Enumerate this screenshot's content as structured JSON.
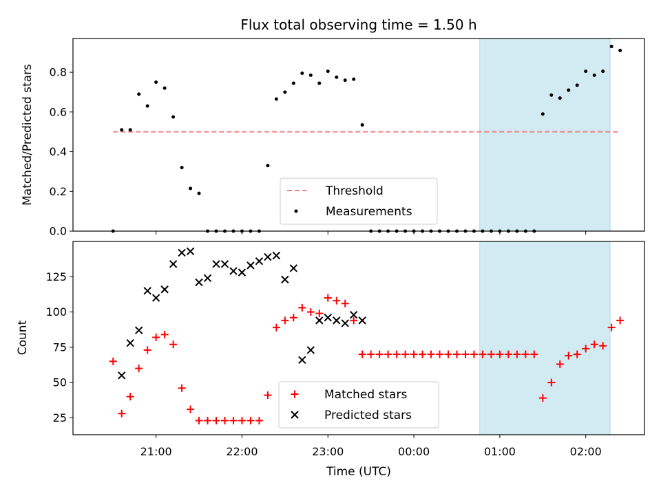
{
  "chart_data": {
    "title": "Flux total observing time = 1.50 h",
    "xlabel": "Time (UTC)",
    "x_tick_labels": [
      "21:00",
      "22:00",
      "23:00",
      "00:00",
      "01:00",
      "02:00"
    ],
    "highlight_color": "#add8e6",
    "panels": [
      {
        "type": "scatter",
        "ylabel": "Matched/Predicted stars",
        "ylim": [
          0,
          0.97
        ],
        "y_tick_labels": [
          "0.0",
          "0.2",
          "0.4",
          "0.6",
          "0.8"
        ],
        "threshold": {
          "name": "Threshold",
          "value": 0.5,
          "x_start": "20:30",
          "x_end": "02:23",
          "color": "#f08080"
        },
        "series": [
          {
            "name": "Measurements",
            "color": "#000000",
            "marker": "dot",
            "x": [
              "20:30",
              "20:36",
              "20:42",
              "20:48",
              "20:54",
              "21:00",
              "21:06",
              "21:12",
              "21:18",
              "21:24",
              "21:30",
              "21:36",
              "21:42",
              "21:48",
              "21:54",
              "22:00",
              "22:06",
              "22:12",
              "22:18",
              "22:24",
              "22:30",
              "22:36",
              "22:42",
              "22:48",
              "22:54",
              "23:00",
              "23:06",
              "23:12",
              "23:18",
              "23:24",
              "23:30",
              "23:36",
              "23:42",
              "23:48",
              "23:54",
              "00:00",
              "00:06",
              "00:12",
              "00:18",
              "00:24",
              "00:30",
              "00:36",
              "00:42",
              "00:48",
              "00:54",
              "01:00",
              "01:06",
              "01:12",
              "01:18",
              "01:24",
              "01:30",
              "01:36",
              "01:42",
              "01:48",
              "01:54",
              "02:00",
              "02:06",
              "02:12",
              "02:18",
              "02:24"
            ],
            "y": [
              0.0,
              0.51,
              0.51,
              0.69,
              0.63,
              0.75,
              0.72,
              0.575,
              0.32,
              0.215,
              0.19,
              0.0,
              0.0,
              0.0,
              0.0,
              0.0,
              0.0,
              0.0,
              0.33,
              0.665,
              0.7,
              0.745,
              0.795,
              0.785,
              0.745,
              0.805,
              0.775,
              0.76,
              0.765,
              0.535,
              0.0,
              0.0,
              0.0,
              0.0,
              0.0,
              0.0,
              0.0,
              0.0,
              0.0,
              0.0,
              0.0,
              0.0,
              0.0,
              0.0,
              0.0,
              0.0,
              0.0,
              0.0,
              0.0,
              0.0,
              0.59,
              0.685,
              0.67,
              0.71,
              0.735,
              0.805,
              0.785,
              0.805,
              0.93,
              0.91
            ]
          }
        ],
        "legend": [
          "Threshold",
          "Measurements"
        ],
        "legend_position": "lower center"
      },
      {
        "type": "scatter",
        "ylabel": "Count",
        "ylim": [
          13,
          150
        ],
        "y_tick_labels": [
          "25",
          "50",
          "75",
          "100",
          "125"
        ],
        "series": [
          {
            "name": "Matched stars",
            "color": "#ff0000",
            "marker": "plus",
            "x": [
              "20:30",
              "20:36",
              "20:42",
              "20:48",
              "20:54",
              "21:00",
              "21:06",
              "21:12",
              "21:18",
              "21:24",
              "21:30",
              "21:36",
              "21:42",
              "21:48",
              "21:54",
              "22:00",
              "22:06",
              "22:12",
              "22:18",
              "22:24",
              "22:30",
              "22:36",
              "22:42",
              "22:48",
              "22:54",
              "23:00",
              "23:06",
              "23:12",
              "23:18",
              "23:24",
              "23:30",
              "23:36",
              "23:42",
              "23:48",
              "23:54",
              "00:00",
              "00:06",
              "00:12",
              "00:18",
              "00:24",
              "00:30",
              "00:36",
              "00:42",
              "00:48",
              "00:54",
              "01:00",
              "01:06",
              "01:12",
              "01:18",
              "01:24",
              "01:30",
              "01:36",
              "01:42",
              "01:48",
              "01:54",
              "02:00",
              "02:06",
              "02:12",
              "02:18",
              "02:24"
            ],
            "y": [
              65,
              28,
              40,
              60,
              73,
              82,
              84,
              77,
              46,
              31,
              23,
              23,
              23,
              23,
              23,
              23,
              23,
              23,
              41,
              89,
              94,
              96,
              103,
              100,
              99,
              110,
              108,
              106,
              94,
              70,
              70,
              70,
              70,
              70,
              70,
              70,
              70,
              70,
              70,
              70,
              70,
              70,
              70,
              70,
              70,
              70,
              70,
              70,
              70,
              70,
              39,
              50,
              63,
              69,
              70,
              74,
              77,
              76,
              89,
              94
            ]
          },
          {
            "name": "Predicted stars",
            "color": "#000000",
            "marker": "cross",
            "x": [
              "20:36",
              "20:42",
              "20:48",
              "20:54",
              "21:00",
              "21:06",
              "21:12",
              "21:18",
              "21:24",
              "21:30",
              "21:36",
              "21:42",
              "21:48",
              "21:54",
              "22:00",
              "22:06",
              "22:12",
              "22:18",
              "22:24",
              "22:30",
              "22:36",
              "22:42",
              "22:48",
              "22:54",
              "23:00",
              "23:06",
              "23:12",
              "23:18",
              "23:24"
            ],
            "y": [
              55,
              78,
              87,
              115,
              110,
              116,
              134,
              142,
              143,
              121,
              124,
              134,
              134,
              129,
              128,
              133,
              136,
              139,
              140,
              123,
              131,
              66,
              73,
              94,
              96,
              94,
              92,
              98,
              94
            ]
          }
        ],
        "legend": [
          "Matched stars",
          "Predicted stars"
        ],
        "legend_position": "lower center"
      }
    ]
  }
}
